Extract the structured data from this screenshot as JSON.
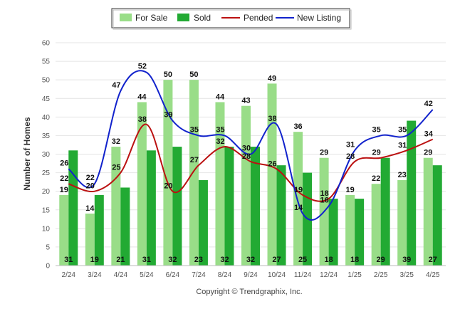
{
  "chart_data": {
    "type": "bar",
    "title": "",
    "xlabel": "",
    "ylabel": "Number of Homes",
    "ylim": [
      0,
      60
    ],
    "ytick_step": 5,
    "grid": true,
    "legend_position": "top-center",
    "categories": [
      "2/24",
      "3/24",
      "4/24",
      "5/24",
      "6/24",
      "7/24",
      "8/24",
      "9/24",
      "10/24",
      "11/24",
      "12/24",
      "1/25",
      "2/25",
      "3/25",
      "4/25"
    ],
    "series": [
      {
        "name": "For Sale",
        "kind": "bar",
        "color": "#99dd88",
        "values": [
          19,
          14,
          32,
          44,
          50,
          50,
          44,
          43,
          49,
          36,
          29,
          19,
          22,
          23,
          29
        ]
      },
      {
        "name": "Sold",
        "kind": "bar",
        "color": "#22aa33",
        "values": [
          31,
          19,
          21,
          31,
          32,
          23,
          32,
          32,
          27,
          25,
          18,
          18,
          29,
          39,
          27
        ]
      },
      {
        "name": "Pended",
        "kind": "line",
        "color": "#bb1111",
        "values": [
          22,
          20,
          25,
          38,
          20,
          27,
          32,
          28,
          26,
          19,
          18,
          28,
          29,
          31,
          34
        ]
      },
      {
        "name": "New Listing",
        "kind": "line",
        "color": "#1122cc",
        "values": [
          26,
          22,
          47,
          52,
          39,
          35,
          35,
          30,
          38,
          14,
          16,
          31,
          35,
          35,
          42
        ]
      }
    ]
  },
  "footer": {
    "copyright": "Copyright © Trendgraphix, Inc."
  }
}
